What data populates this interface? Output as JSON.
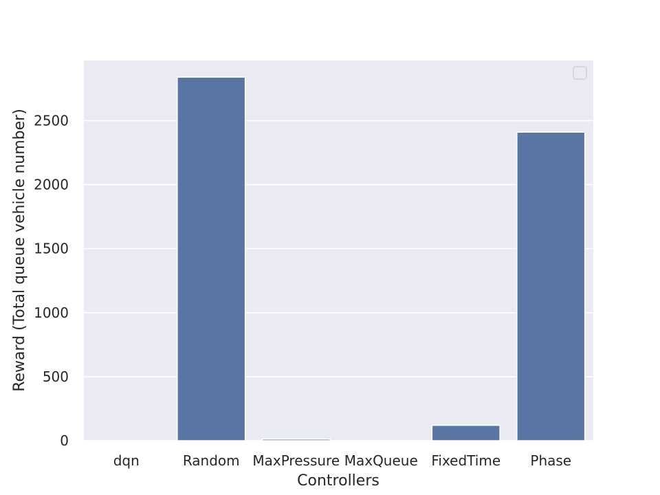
{
  "chart_data": {
    "type": "bar",
    "title": "",
    "xlabel": "Controllers",
    "ylabel": "Reward (Total queue vehicle number)",
    "categories": [
      "dqn",
      "Random",
      "MaxPressure",
      "MaxQueue",
      "FixedTime",
      "Phase"
    ],
    "values": [
      0,
      2840,
      12,
      0,
      120,
      2410
    ],
    "ylim": [
      0,
      2970
    ],
    "yticks": [
      0,
      500,
      1000,
      1500,
      2000,
      2500
    ],
    "grid": true,
    "legend": "top-right (empty)",
    "colors": {
      "bar": "#5975a4",
      "plot_background": "#eaeaf2",
      "grid": "#ffffff",
      "text": "#262626"
    }
  }
}
